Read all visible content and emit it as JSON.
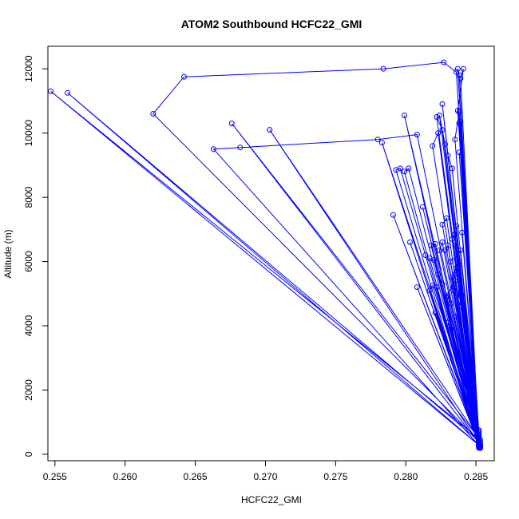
{
  "chart_data": {
    "type": "line",
    "title": "ATOM2 Southbound HCFC22_GMI",
    "xlabel": "HCFC22_GMI",
    "ylabel": "Altitude (m)",
    "xlim": [
      0.2545,
      0.2863
    ],
    "ylim": [
      -200,
      12700
    ],
    "xticks": [
      0.255,
      0.26,
      0.265,
      0.27,
      0.275,
      0.28,
      0.285
    ],
    "xtick_labels": [
      "0.255",
      "0.260",
      "0.265",
      "0.270",
      "0.275",
      "0.280",
      "0.285"
    ],
    "yticks": [
      0,
      2000,
      4000,
      6000,
      8000,
      10000,
      12000
    ],
    "ytick_labels": [
      "0",
      "2000",
      "4000",
      "6000",
      "8000",
      "10000",
      "12000"
    ],
    "grid": false,
    "series": [
      {
        "name": "HCFC22_GMI",
        "color": "#0000ff",
        "marker": "open-circle",
        "points": [
          [
            0.2852,
            200
          ],
          [
            0.2852,
            300
          ],
          [
            0.2821,
            4400
          ],
          [
            0.2853,
            250
          ],
          [
            0.2822,
            5200
          ],
          [
            0.2852,
            350
          ],
          [
            0.2808,
            5200
          ],
          [
            0.2853,
            220
          ],
          [
            0.2814,
            6200
          ],
          [
            0.2852,
            400
          ],
          [
            0.2803,
            6600
          ],
          [
            0.2853,
            260
          ],
          [
            0.2791,
            7450
          ],
          [
            0.2853,
            300
          ],
          [
            0.2822,
            10500
          ],
          [
            0.2826,
            10100
          ],
          [
            0.2852,
            500
          ],
          [
            0.2703,
            10100
          ],
          [
            0.2852,
            350
          ],
          [
            0.2676,
            10300
          ],
          [
            0.2853,
            450
          ],
          [
            0.2547,
            11300
          ],
          [
            0.2853,
            250
          ],
          [
            0.2559,
            11250
          ],
          [
            0.2853,
            380
          ],
          [
            0.262,
            10600
          ],
          [
            0.2642,
            11750
          ],
          [
            0.2784,
            12000
          ],
          [
            0.2827,
            12200
          ],
          [
            0.2836,
            11900
          ],
          [
            0.2852,
            280
          ],
          [
            0.2663,
            9500
          ],
          [
            0.2682,
            9550
          ],
          [
            0.278,
            9800
          ],
          [
            0.2808,
            9950
          ],
          [
            0.2852,
            600
          ],
          [
            0.2799,
            10550
          ],
          [
            0.2852,
            250
          ],
          [
            0.2783,
            9700
          ],
          [
            0.2852,
            500
          ],
          [
            0.2796,
            8900
          ],
          [
            0.2793,
            8850
          ],
          [
            0.2852,
            320
          ],
          [
            0.2799,
            8800
          ],
          [
            0.2802,
            8900
          ],
          [
            0.2853,
            280
          ],
          [
            0.2812,
            7700
          ],
          [
            0.2852,
            400
          ],
          [
            0.2819,
            9600
          ],
          [
            0.2823,
            10000
          ],
          [
            0.2852,
            320
          ],
          [
            0.2826,
            10900
          ],
          [
            0.2852,
            700
          ],
          [
            0.2824,
            10550
          ],
          [
            0.2828,
            9650
          ],
          [
            0.2852,
            350
          ],
          [
            0.283,
            9300
          ],
          [
            0.2833,
            8900
          ],
          [
            0.2852,
            450
          ],
          [
            0.2835,
            9800
          ],
          [
            0.2838,
            10650
          ],
          [
            0.2852,
            300
          ],
          [
            0.2837,
            10700
          ],
          [
            0.2841,
            12000
          ],
          [
            0.2839,
            11700
          ],
          [
            0.2852,
            330
          ],
          [
            0.2838,
            11800
          ],
          [
            0.2837,
            12000
          ],
          [
            0.2852,
            600
          ],
          [
            0.2839,
            10350
          ],
          [
            0.2838,
            10300
          ],
          [
            0.2852,
            400
          ],
          [
            0.2838,
            9400
          ],
          [
            0.2852,
            700
          ],
          [
            0.284,
            6900
          ],
          [
            0.2852,
            420
          ],
          [
            0.2836,
            7100
          ],
          [
            0.2835,
            6500
          ],
          [
            0.2852,
            500
          ],
          [
            0.2826,
            7150
          ],
          [
            0.2829,
            7350
          ],
          [
            0.2852,
            350
          ],
          [
            0.2826,
            6600
          ],
          [
            0.2824,
            6350
          ],
          [
            0.2852,
            600
          ],
          [
            0.2818,
            6500
          ],
          [
            0.2821,
            6550
          ],
          [
            0.2852,
            300
          ],
          [
            0.2817,
            6100
          ],
          [
            0.282,
            6050
          ],
          [
            0.2852,
            500
          ],
          [
            0.2823,
            5600
          ],
          [
            0.2826,
            5300
          ],
          [
            0.2852,
            750
          ],
          [
            0.2819,
            5250
          ],
          [
            0.2817,
            5100
          ],
          [
            0.2852,
            400
          ],
          [
            0.283,
            4950
          ],
          [
            0.2832,
            4700
          ],
          [
            0.2852,
            550
          ],
          [
            0.2829,
            4900
          ],
          [
            0.2835,
            5400
          ],
          [
            0.2852,
            320
          ],
          [
            0.2833,
            5500
          ],
          [
            0.2836,
            5800
          ],
          [
            0.2852,
            450
          ],
          [
            0.2832,
            6000
          ],
          [
            0.2839,
            6350
          ],
          [
            0.2852,
            650
          ],
          [
            0.2838,
            6000
          ],
          [
            0.2836,
            6200
          ],
          [
            0.2852,
            380
          ],
          [
            0.2833,
            6700
          ],
          [
            0.2835,
            6850
          ],
          [
            0.2852,
            500
          ],
          [
            0.283,
            6500
          ],
          [
            0.2828,
            6350
          ],
          [
            0.2852,
            700
          ],
          [
            0.2836,
            5650
          ],
          [
            0.2838,
            5900
          ],
          [
            0.2852,
            350
          ],
          [
            0.2834,
            5100
          ],
          [
            0.2836,
            4900
          ],
          [
            0.2852,
            250
          ],
          [
            0.283,
            4100
          ],
          [
            0.2832,
            3900
          ],
          [
            0.2852,
            550
          ],
          [
            0.2836,
            4300
          ],
          [
            0.2838,
            4600
          ],
          [
            0.2852,
            420
          ],
          [
            0.284,
            4700
          ],
          [
            0.2839,
            5000
          ],
          [
            0.2852,
            300
          ],
          [
            0.2835,
            5600
          ],
          [
            0.2837,
            5800
          ],
          [
            0.2852,
            480
          ],
          [
            0.2834,
            5200
          ],
          [
            0.284,
            4950
          ],
          [
            0.2852,
            750
          ],
          [
            0.2853,
            210
          ],
          [
            0.2852,
            240
          ],
          [
            0.2853,
            190
          ],
          [
            0.2852,
            260
          ],
          [
            0.2853,
            230
          ]
        ]
      }
    ]
  }
}
